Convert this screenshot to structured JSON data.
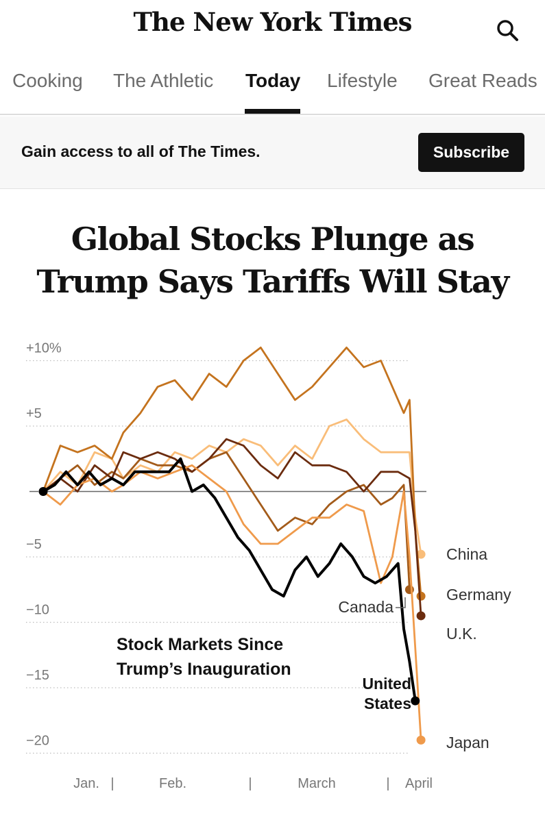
{
  "masthead": {
    "logo": "The New York Times",
    "search_icon": "search-icon"
  },
  "nav": {
    "items": [
      "Cooking",
      "The Athletic",
      "Today",
      "Lifestyle",
      "Great Reads"
    ],
    "active": "Today"
  },
  "promo": {
    "text": "Gain access to all of The Times.",
    "button": "Subscribe"
  },
  "headline": {
    "line1": "Global Stocks Plunge as",
    "line2": "Trump Says Tariffs Will Stay"
  },
  "chart_data": {
    "type": "line",
    "title": "Stock Markets Since Trump’s Inauguration",
    "xlabel": "",
    "ylabel": "",
    "ylim": [
      -21,
      11.5
    ],
    "yticks": [
      {
        "value": 10,
        "label": "+10%"
      },
      {
        "value": 5,
        "label": "+5"
      },
      {
        "value": 0,
        "label": ""
      },
      {
        "value": -5,
        "label": "−5"
      },
      {
        "value": -10,
        "label": "−10"
      },
      {
        "value": -15,
        "label": "−15"
      },
      {
        "value": -20,
        "label": "−20"
      }
    ],
    "xticks": [
      {
        "day": 6,
        "label": "Jan.",
        "separator": "|"
      },
      {
        "day": 26,
        "label": "Feb.",
        "separator": "|"
      },
      {
        "day": 46,
        "label": "March",
        "separator": "|"
      },
      {
        "day": 66,
        "label": "April",
        "separator": ""
      }
    ],
    "series": [
      {
        "name": "China",
        "color": "#f9bd79",
        "days": [
          0,
          3,
          6,
          9,
          12,
          14,
          17,
          20,
          23,
          26,
          29,
          32,
          35,
          38,
          41,
          44,
          47,
          50,
          53,
          56,
          59,
          62,
          64,
          65,
          66
        ],
        "values": [
          0,
          1.5,
          0.5,
          3,
          2.5,
          1,
          2,
          1.5,
          3,
          2.5,
          3.5,
          3,
          4,
          3.5,
          2,
          3.5,
          2.5,
          5,
          5.5,
          4,
          3,
          3,
          3,
          -2,
          -4.8
        ]
      },
      {
        "name": "Germany",
        "color": "#c4731e",
        "days": [
          0,
          3,
          6,
          9,
          12,
          14,
          17,
          20,
          23,
          26,
          29,
          32,
          35,
          38,
          41,
          44,
          47,
          50,
          53,
          56,
          59,
          61,
          63,
          64,
          65,
          66
        ],
        "values": [
          0,
          3.5,
          3,
          3.5,
          2.5,
          4.5,
          6,
          8,
          8.5,
          7,
          9,
          8,
          10,
          11,
          9,
          7,
          8,
          9.5,
          11,
          9.5,
          10,
          8,
          6,
          7,
          -3,
          -8
        ]
      },
      {
        "name": "U.K.",
        "color": "#6b2c0f",
        "days": [
          0,
          3,
          6,
          9,
          12,
          14,
          17,
          20,
          23,
          26,
          29,
          32,
          35,
          38,
          41,
          44,
          47,
          50,
          53,
          56,
          59,
          62,
          64,
          65,
          66
        ],
        "values": [
          0,
          1,
          0,
          2,
          1,
          3,
          2.5,
          3,
          2.5,
          1.5,
          2.5,
          4,
          3.5,
          2,
          1,
          3,
          2,
          2,
          1.5,
          0,
          1.5,
          1.5,
          1,
          -3,
          -9.5
        ]
      },
      {
        "name": "Canada",
        "color": "#a35b1a",
        "days": [
          0,
          3,
          6,
          9,
          12,
          14,
          17,
          20,
          23,
          26,
          29,
          32,
          35,
          38,
          41,
          44,
          47,
          50,
          53,
          56,
          59,
          61,
          63,
          64
        ],
        "values": [
          0,
          1,
          2,
          0.5,
          1.5,
          1,
          2.5,
          2,
          2,
          1.5,
          2.5,
          3,
          1,
          -1,
          -3,
          -2,
          -2.5,
          -1,
          0,
          0.5,
          -1,
          -0.5,
          0.5,
          -7.5
        ]
      },
      {
        "name": "Japan",
        "color": "#ef9a4b",
        "days": [
          0,
          3,
          6,
          9,
          12,
          14,
          17,
          20,
          23,
          26,
          29,
          32,
          35,
          38,
          41,
          44,
          47,
          50,
          53,
          56,
          59,
          61,
          63,
          64,
          65,
          66
        ],
        "values": [
          0,
          -1,
          0.5,
          1,
          0,
          0.5,
          1.5,
          1,
          1.5,
          2,
          1,
          0,
          -2.5,
          -4,
          -4,
          -3,
          -2,
          -2,
          -1,
          -1.5,
          -7,
          -5,
          0,
          -5,
          -12,
          -19
        ]
      },
      {
        "name": "United States",
        "color": "#000000",
        "days": [
          0,
          2,
          4,
          6,
          8,
          10,
          12,
          14,
          16,
          18,
          20,
          22,
          24,
          26,
          28,
          30,
          32,
          34,
          36,
          38,
          40,
          42,
          44,
          46,
          48,
          50,
          52,
          54,
          56,
          58,
          60,
          62,
          63,
          64,
          65
        ],
        "values": [
          0,
          0.5,
          1.5,
          0.5,
          1.5,
          0.5,
          1,
          0.5,
          1.5,
          1.5,
          1.5,
          1.5,
          2.5,
          0,
          0.5,
          -0.5,
          -2,
          -3.5,
          -4.5,
          -6,
          -7.5,
          -8,
          -6,
          -5,
          -6.5,
          -5.5,
          -4,
          -5,
          -6.5,
          -7,
          -6.5,
          -5.5,
          -10.5,
          -13,
          -16
        ]
      }
    ],
    "labels": {
      "China": "China",
      "Germany": "Germany",
      "U.K.": "U.K.",
      "Canada": "Canada",
      "United States": [
        "United",
        "States"
      ],
      "Japan": "Japan"
    }
  }
}
